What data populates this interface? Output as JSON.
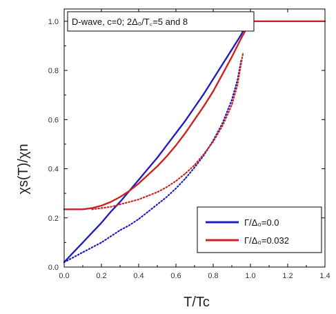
{
  "chart_data": {
    "type": "line",
    "title": "D-wave, c=0; 2Δ₀/T꜀=5 and 8",
    "xlabel": "T/Tc",
    "ylabel": "χs(T)/χn",
    "xlim": [
      0.0,
      1.4
    ],
    "ylim": [
      0.0,
      1.05
    ],
    "x_ticks": [
      "0.0",
      "0.2",
      "0.4",
      "0.6",
      "0.8",
      "1.0",
      "1.2",
      "1.4"
    ],
    "y_ticks": [
      "0.0",
      "0.2",
      "0.4",
      "0.6",
      "0.8",
      "1.0"
    ],
    "grid": false,
    "legend_position": "bottom-right",
    "legend": [
      {
        "label": "Γ/Δ₀=0.0",
        "color": "#1f1fbf"
      },
      {
        "label": "Γ/Δ₀=0.032",
        "color": "#cc2222"
      }
    ],
    "series": [
      {
        "legend_index": 0,
        "style": "solid",
        "color": "#1f1fbf",
        "x": [
          0.0,
          0.05,
          0.1,
          0.15,
          0.2,
          0.25,
          0.3,
          0.35,
          0.4,
          0.45,
          0.5,
          0.55,
          0.6,
          0.65,
          0.7,
          0.75,
          0.8,
          0.85,
          0.9,
          0.95,
          0.98
        ],
        "y": [
          0.02,
          0.06,
          0.1,
          0.14,
          0.18,
          0.225,
          0.265,
          0.31,
          0.355,
          0.4,
          0.445,
          0.495,
          0.545,
          0.595,
          0.65,
          0.705,
          0.765,
          0.825,
          0.885,
          0.945,
          0.99
        ]
      },
      {
        "legend_index": 1,
        "style": "solid",
        "color": "#cc2222",
        "x": [
          0.0,
          0.05,
          0.1,
          0.15,
          0.2,
          0.25,
          0.3,
          0.35,
          0.4,
          0.45,
          0.5,
          0.55,
          0.6,
          0.65,
          0.7,
          0.75,
          0.8,
          0.85,
          0.9,
          0.95,
          1.0,
          1.05,
          1.1,
          1.2,
          1.3,
          1.4
        ],
        "y": [
          0.235,
          0.235,
          0.235,
          0.24,
          0.25,
          0.265,
          0.285,
          0.31,
          0.34,
          0.375,
          0.41,
          0.45,
          0.495,
          0.545,
          0.6,
          0.655,
          0.715,
          0.785,
          0.855,
          0.93,
          1.0,
          1.0,
          1.0,
          1.0,
          1.0,
          1.0
        ]
      },
      {
        "legend_index": 0,
        "style": "dotted",
        "color": "#1f1fbf",
        "x": [
          0.0,
          0.05,
          0.1,
          0.15,
          0.2,
          0.25,
          0.3,
          0.35,
          0.4,
          0.45,
          0.5,
          0.55,
          0.6,
          0.65,
          0.7,
          0.75,
          0.8,
          0.85,
          0.9,
          0.93,
          0.95
        ],
        "y": [
          0.02,
          0.04,
          0.06,
          0.08,
          0.1,
          0.125,
          0.15,
          0.17,
          0.195,
          0.225,
          0.255,
          0.285,
          0.32,
          0.36,
          0.405,
          0.455,
          0.515,
          0.585,
          0.68,
          0.76,
          0.84
        ]
      },
      {
        "legend_index": 1,
        "style": "dotted",
        "color": "#cc2222",
        "x": [
          0.15,
          0.2,
          0.25,
          0.3,
          0.35,
          0.4,
          0.45,
          0.5,
          0.55,
          0.6,
          0.65,
          0.7,
          0.75,
          0.8,
          0.85,
          0.9,
          0.93,
          0.96
        ],
        "y": [
          0.235,
          0.24,
          0.245,
          0.255,
          0.265,
          0.275,
          0.29,
          0.305,
          0.325,
          0.35,
          0.38,
          0.415,
          0.46,
          0.51,
          0.575,
          0.66,
          0.74,
          0.87
        ]
      }
    ]
  }
}
